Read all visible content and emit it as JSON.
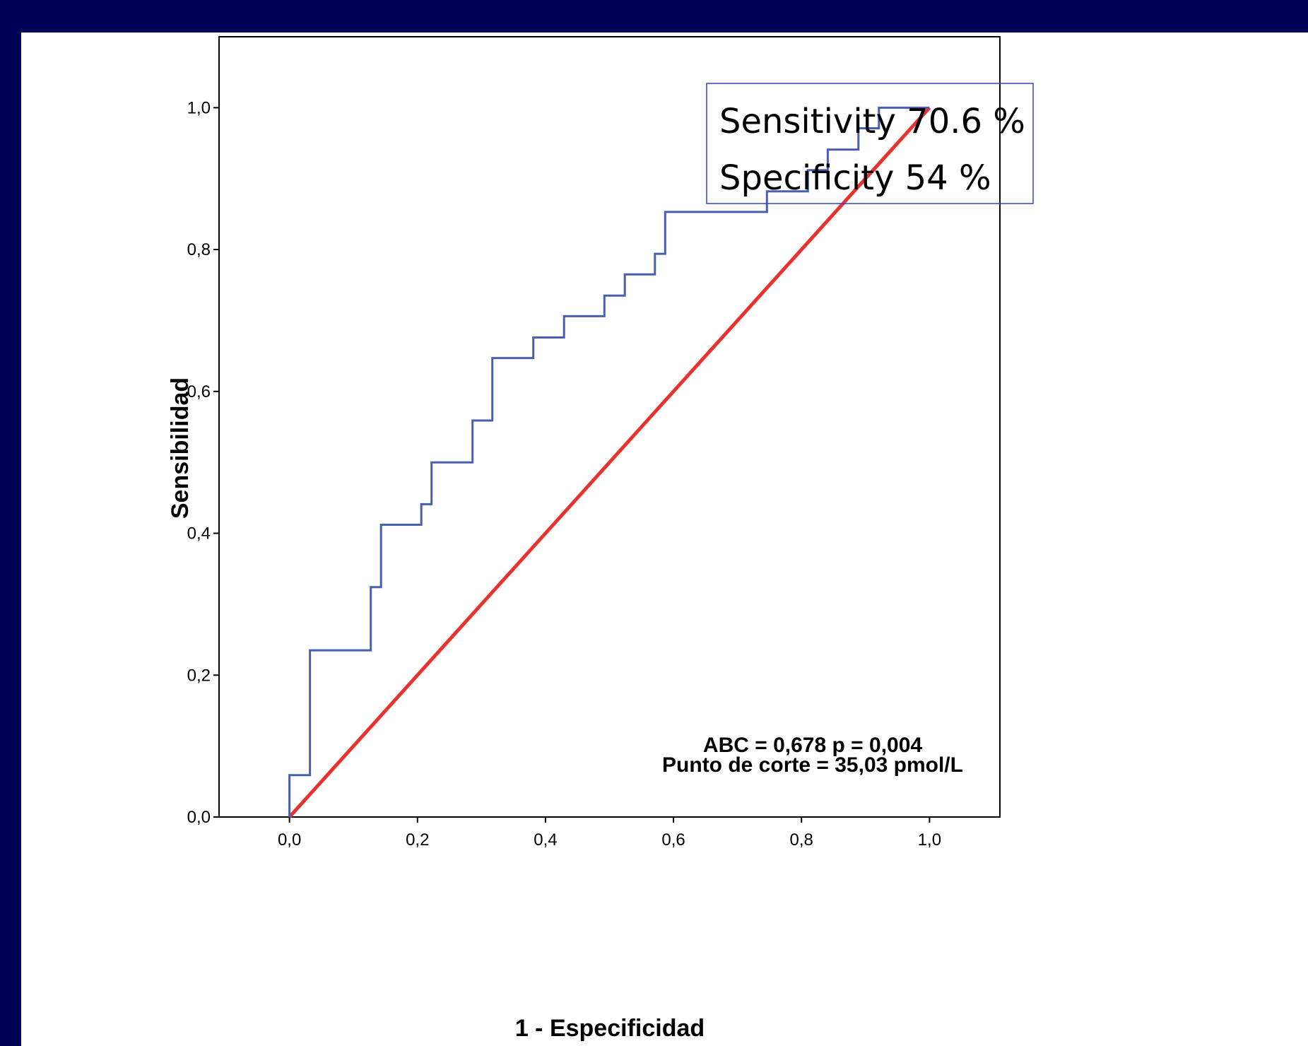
{
  "chart_data": {
    "type": "line",
    "xlabel": "1 - Especificidad",
    "ylabel": "Sensibilidad",
    "xlim": [
      -0.11,
      1.11
    ],
    "ylim": [
      0,
      1.1
    ],
    "x_ticks": [
      "0,0",
      "0,2",
      "0,4",
      "0,6",
      "0,8",
      "1,0"
    ],
    "y_ticks": [
      "0,0",
      "0,2",
      "0,4",
      "0,6",
      "0,8",
      "1,0"
    ],
    "grid": false,
    "series": [
      {
        "color": "#4a5fb0",
        "step": true,
        "x": [
          0.0,
          0.0,
          0.032,
          0.032,
          0.127,
          0.127,
          0.143,
          0.143,
          0.206,
          0.206,
          0.222,
          0.222,
          0.286,
          0.286,
          0.317,
          0.317,
          0.381,
          0.381,
          0.429,
          0.429,
          0.492,
          0.492,
          0.524,
          0.524,
          0.571,
          0.571,
          0.587,
          0.587,
          0.746,
          0.746,
          0.81,
          0.81,
          0.841,
          0.841,
          0.889,
          0.889,
          0.921,
          0.921,
          1.0
        ],
        "y": [
          0.0,
          0.059,
          0.059,
          0.235,
          0.235,
          0.324,
          0.324,
          0.412,
          0.412,
          0.441,
          0.441,
          0.5,
          0.5,
          0.559,
          0.559,
          0.647,
          0.647,
          0.676,
          0.676,
          0.706,
          0.706,
          0.735,
          0.735,
          0.765,
          0.765,
          0.794,
          0.794,
          0.853,
          0.853,
          0.882,
          0.882,
          0.912,
          0.912,
          0.941,
          0.941,
          0.971,
          0.971,
          1.0,
          1.0
        ]
      },
      {
        "color": "#e8322d",
        "x": [
          0.0,
          1.0
        ],
        "y": [
          0.0,
          1.0
        ]
      }
    ],
    "annotations": [
      "ABC = 0,678 p = 0,004",
      "Punto de corte = 35,03 pmol/L"
    ],
    "box_lines": [
      "Sensitivity 70.6 %",
      "Specificity 54 %"
    ],
    "colors": {
      "background": "#000055",
      "roc": "#4a5fb0",
      "reference": "#e8322d",
      "box_border": "#3344cc"
    }
  }
}
